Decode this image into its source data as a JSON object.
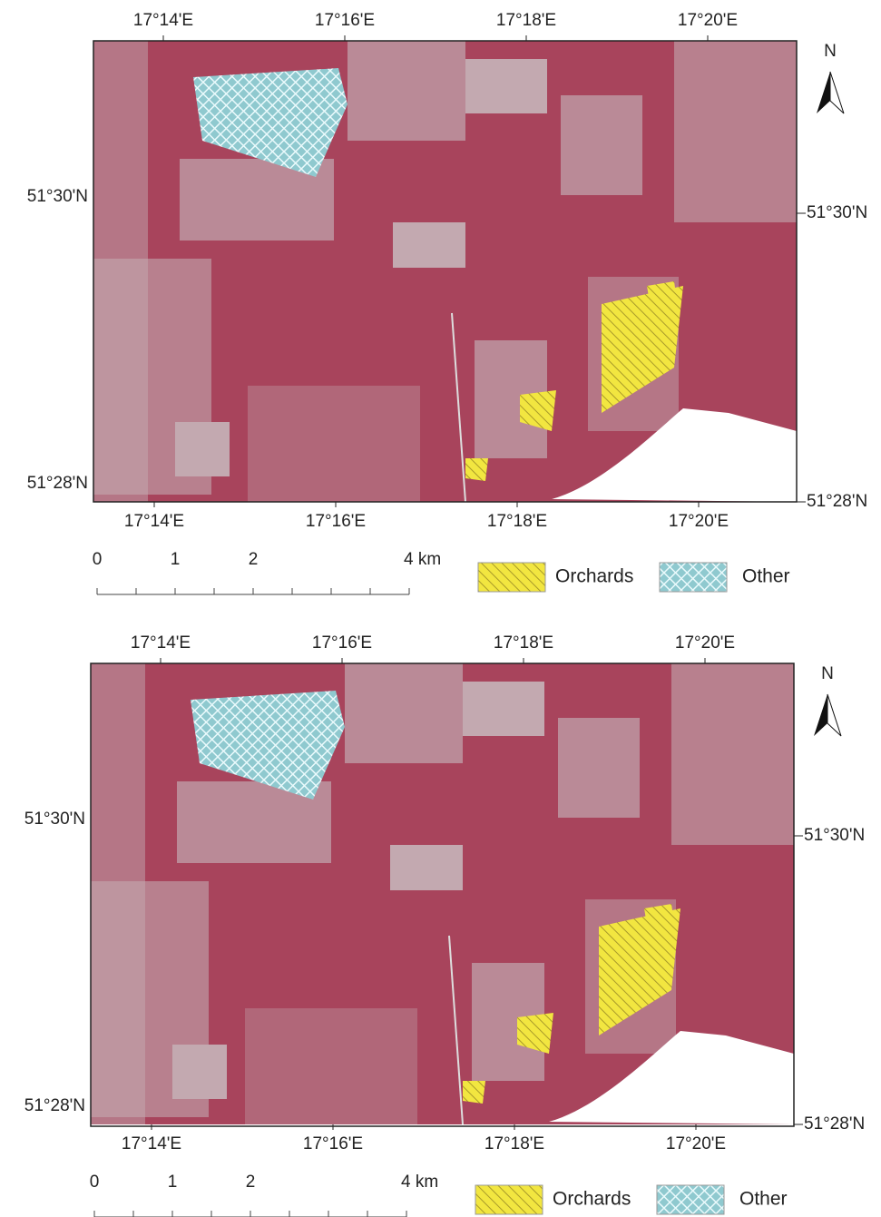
{
  "panels": [
    {
      "top_labels": [
        "17°14'E",
        "17°16'E",
        "17°18'E",
        "17°20'E"
      ],
      "bottom_labels": [
        "17°14'E",
        "17°16'E",
        "17°18'E",
        "17°20'E"
      ],
      "left_labels": [
        "51°30'N",
        "51°28'N"
      ],
      "right_labels": [
        "51°30'N",
        "51°28'N"
      ],
      "north": "N",
      "scale_labels": [
        "0",
        "1",
        "2",
        "4 km"
      ],
      "legend": [
        "Orchards",
        "Other"
      ]
    },
    {
      "top_labels": [
        "17°14'E",
        "17°16'E",
        "17°18'E",
        "17°20'E"
      ],
      "bottom_labels": [
        "17°14'E",
        "17°16'E",
        "17°18'E",
        "17°20'E"
      ],
      "left_labels": [
        "51°30'N",
        "51°28'N"
      ],
      "right_labels": [
        "51°30'N",
        "51°28'N"
      ],
      "north": "N",
      "scale_labels": [
        "0",
        "1",
        "2",
        "4 km"
      ],
      "legend": [
        "Orchards",
        "Other"
      ]
    }
  ]
}
